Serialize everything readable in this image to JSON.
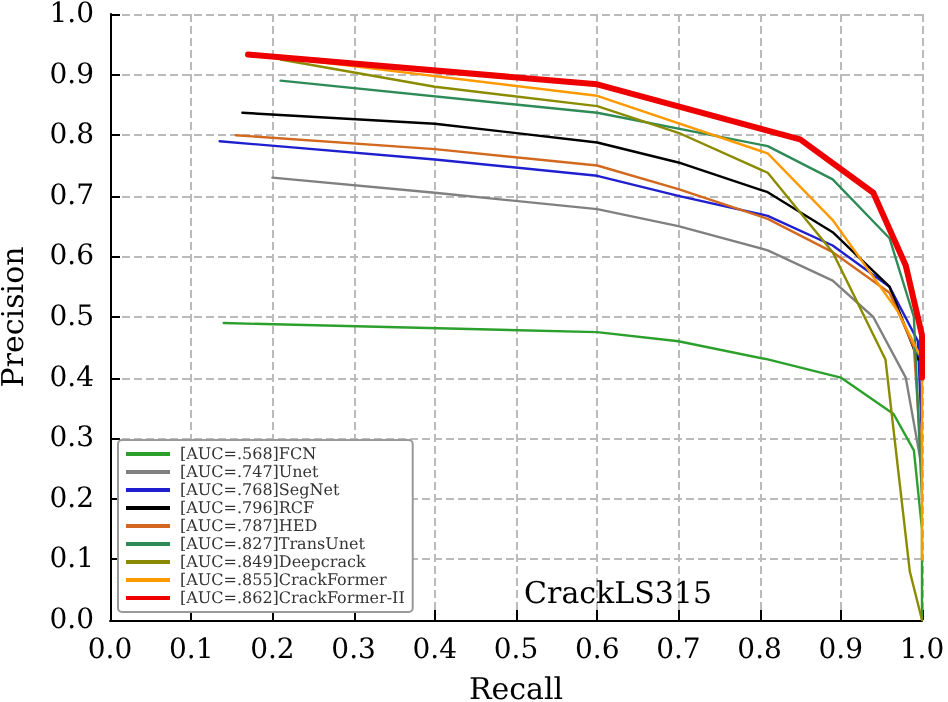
{
  "chart_data": {
    "type": "line",
    "xlabel": "Recall",
    "ylabel": "Precision",
    "annotations": [
      "CrackLS315"
    ],
    "xlim": [
      0,
      1
    ],
    "ylim": [
      0,
      1
    ],
    "xticks": [
      {
        "value": 0,
        "label": "0.0"
      },
      0.1,
      0.2,
      0.3,
      0.4,
      0.5,
      0.6,
      0.7,
      0.8,
      0.9,
      {
        "value": 1,
        "label": "1.0"
      }
    ],
    "yticks": [
      {
        "value": 0,
        "label": "0.0"
      },
      0.1,
      0.2,
      0.3,
      0.4,
      0.5,
      0.6,
      0.7,
      0.8,
      0.9,
      {
        "value": 1,
        "label": "1.0"
      }
    ],
    "grid": true,
    "legend": "bottom left",
    "marker": "none",
    "line_style": "solid",
    "series": [
      {
        "name": "[AUC=.568]FCN",
        "color": "#2ca02c",
        "x": [
          0.14,
          0.6,
          0.7,
          0.81,
          0.9,
          0.965,
          0.99,
          1.0,
          1.0
        ],
        "values": [
          0.49,
          0.475,
          0.46,
          0.43,
          0.4,
          0.34,
          0.28,
          0.15,
          0.0
        ]
      },
      {
        "name": "[AUC=.747]Unet",
        "color": "#808080",
        "x": [
          0.2,
          0.4,
          0.6,
          0.7,
          0.81,
          0.89,
          0.94,
          0.98,
          1.0
        ],
        "values": [
          0.73,
          0.705,
          0.678,
          0.65,
          0.61,
          0.56,
          0.5,
          0.4,
          0.25
        ]
      },
      {
        "name": "[AUC=.768]SegNet",
        "color": "#1f1fd0",
        "x": [
          0.135,
          0.4,
          0.6,
          0.7,
          0.81,
          0.89,
          0.96,
          0.995,
          1.0
        ],
        "values": [
          0.79,
          0.76,
          0.733,
          0.7,
          0.667,
          0.618,
          0.55,
          0.46,
          0.3
        ]
      },
      {
        "name": "[AUC=.796]RCF",
        "color": "#000000",
        "x": [
          0.163,
          0.4,
          0.6,
          0.7,
          0.81,
          0.89,
          0.96,
          0.995
        ],
        "values": [
          0.837,
          0.819,
          0.788,
          0.755,
          0.706,
          0.64,
          0.55,
          0.43
        ]
      },
      {
        "name": "[AUC=.787]HED",
        "color": "#d2691e",
        "x": [
          0.155,
          0.4,
          0.6,
          0.7,
          0.81,
          0.89,
          0.96,
          0.99,
          1.0
        ],
        "values": [
          0.8,
          0.777,
          0.75,
          0.711,
          0.662,
          0.607,
          0.54,
          0.45,
          0.25
        ]
      },
      {
        "name": "[AUC=.827]TransUnet",
        "color": "#2e8b57",
        "x": [
          0.21,
          0.6,
          0.81,
          0.89,
          0.96,
          0.99,
          1.0
        ],
        "values": [
          0.89,
          0.837,
          0.782,
          0.727,
          0.63,
          0.5,
          0.2
        ]
      },
      {
        "name": "[AUC=.849]Deepcrack",
        "color": "#8b8b00",
        "x": [
          0.21,
          0.4,
          0.6,
          0.7,
          0.81,
          0.89,
          0.955,
          0.985,
          1.0
        ],
        "values": [
          0.925,
          0.88,
          0.848,
          0.804,
          0.738,
          0.607,
          0.43,
          0.08,
          0.0
        ]
      },
      {
        "name": "[AUC=.855]CrackFormer",
        "color": "#ff9900",
        "x": [
          0.2,
          0.6,
          0.81,
          0.89,
          0.97,
          1.0,
          1.0
        ],
        "values": [
          0.93,
          0.865,
          0.77,
          0.66,
          0.51,
          0.43,
          0.1
        ]
      },
      {
        "name": "[AUC=.862]CrackFormer-II",
        "color": "#ee0000",
        "x": [
          0.17,
          0.6,
          0.85,
          0.94,
          0.98,
          1.0,
          1.0
        ],
        "values": [
          0.933,
          0.884,
          0.793,
          0.705,
          0.585,
          0.47,
          0.4
        ]
      }
    ]
  }
}
